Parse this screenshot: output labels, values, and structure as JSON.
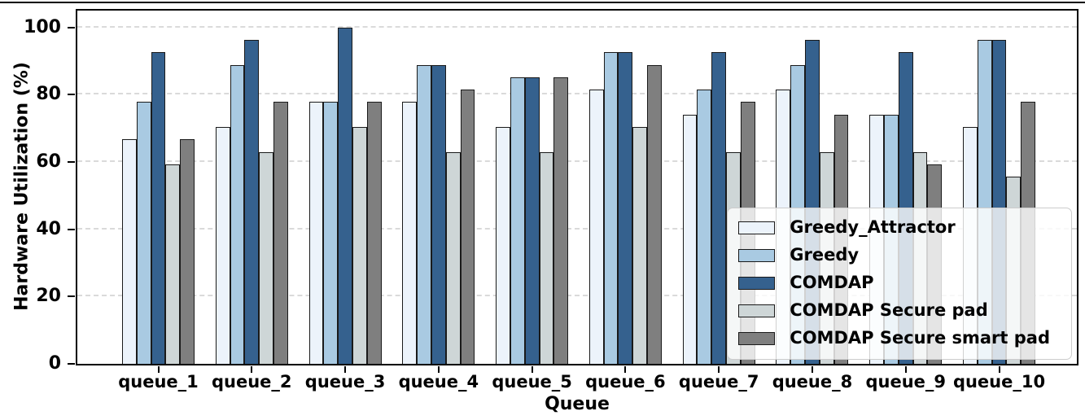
{
  "page": {
    "background": "#ffffff",
    "top_rule_color": "#000000"
  },
  "chart_data": {
    "type": "bar",
    "title": "",
    "xlabel": "Queue",
    "ylabel": "Hardware Utilization (%)",
    "categories": [
      "queue_1",
      "queue_2",
      "queue_3",
      "queue_4",
      "queue_5",
      "queue_6",
      "queue_7",
      "queue_8",
      "queue_9",
      "queue_10"
    ],
    "series": [
      {
        "name": "Greedy_Attractor",
        "color": "#ecf3fb",
        "values": [
          66.7,
          70.4,
          77.8,
          77.8,
          70.4,
          81.5,
          74.1,
          81.5,
          74.1,
          70.4
        ]
      },
      {
        "name": "Greedy",
        "color": "#a9cae2",
        "values": [
          77.8,
          88.9,
          77.8,
          88.9,
          85.2,
          92.6,
          81.5,
          88.9,
          74.1,
          96.3
        ]
      },
      {
        "name": "COMDAP",
        "color": "#35618e",
        "values": [
          92.6,
          96.3,
          100.0,
          88.9,
          85.2,
          92.6,
          92.6,
          96.3,
          92.6,
          96.3
        ]
      },
      {
        "name": "COMDAP Secure pad",
        "color": "#ced6d7",
        "values": [
          59.3,
          63.0,
          70.4,
          63.0,
          63.0,
          70.4,
          63.0,
          63.0,
          63.0,
          55.6
        ]
      },
      {
        "name": "COMDAP Secure smart pad",
        "color": "#7f7f7f",
        "values": [
          66.7,
          77.8,
          77.8,
          81.5,
          85.2,
          88.9,
          77.8,
          74.1,
          59.3,
          77.8
        ]
      }
    ],
    "yticks": [
      0,
      20,
      40,
      60,
      80,
      100
    ],
    "ylim": [
      0,
      105
    ],
    "grid": "horizontal-dashed",
    "legend_position": "lower-right",
    "bar_edge_color": "#1a1a1a",
    "gridline_color": "#dadada"
  }
}
